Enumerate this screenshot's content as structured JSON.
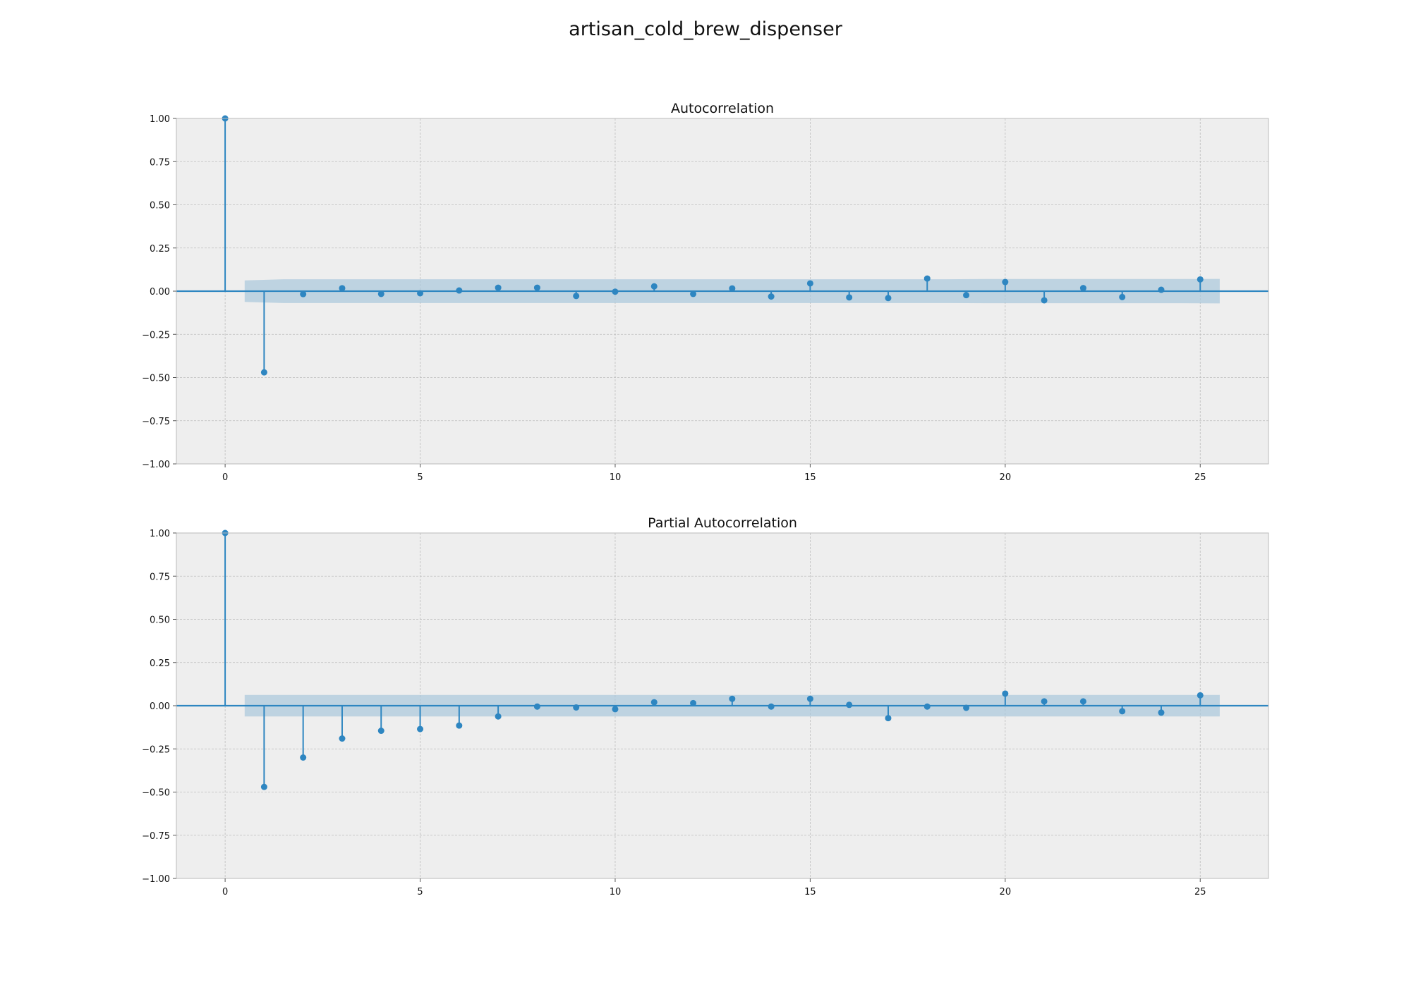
{
  "figure": {
    "suptitle": "artisan_cold_brew_dispenser"
  },
  "colors": {
    "stem": "#2E86C1",
    "marker": "#2E86C1",
    "band": "#A9C8DC",
    "axes_bg": "#EEEEEE",
    "grid": "#BDBDBD"
  },
  "chart_data": [
    {
      "type": "stem",
      "title": "Autocorrelation",
      "xlabel": "",
      "ylabel": "",
      "xlim": [
        -1.25,
        26.75
      ],
      "ylim": [
        -1.0,
        1.0
      ],
      "xticks": [
        "0",
        "5",
        "10",
        "15",
        "20",
        "25"
      ],
      "yticks": [
        "1.00",
        "0.75",
        "0.50",
        "0.25",
        "0.00",
        "−0.25",
        "−0.50",
        "−0.75",
        "−1.00"
      ],
      "grid": true,
      "lags": [
        0,
        1,
        2,
        3,
        4,
        5,
        6,
        7,
        8,
        9,
        10,
        11,
        12,
        13,
        14,
        15,
        16,
        17,
        18,
        19,
        20,
        21,
        22,
        23,
        24,
        25
      ],
      "values": [
        1.0,
        -0.47,
        -0.017,
        0.017,
        -0.016,
        -0.012,
        0.004,
        0.02,
        0.02,
        -0.028,
        -0.003,
        0.028,
        -0.016,
        0.016,
        -0.031,
        0.045,
        -0.036,
        -0.04,
        0.073,
        -0.023,
        0.053,
        -0.053,
        0.018,
        -0.034,
        0.008,
        0.068
      ],
      "conf_band": {
        "lags": [
          0.5,
          1.5,
          2.5,
          3.5,
          4.5,
          5.5,
          6.5,
          7.5,
          8.5,
          9.5,
          10.5,
          11.5,
          12.5,
          13.5,
          14.5,
          15.5,
          16.5,
          17.5,
          18.5,
          19.5,
          20.5,
          21.5,
          22.5,
          23.5,
          24.5,
          25.5
        ],
        "upper": [
          0.062,
          0.069,
          0.069,
          0.069,
          0.069,
          0.069,
          0.069,
          0.069,
          0.069,
          0.069,
          0.069,
          0.069,
          0.069,
          0.069,
          0.069,
          0.069,
          0.069,
          0.069,
          0.069,
          0.07,
          0.07,
          0.07,
          0.07,
          0.07,
          0.07,
          0.071
        ]
      }
    },
    {
      "type": "stem",
      "title": "Partial Autocorrelation",
      "xlabel": "",
      "ylabel": "",
      "xlim": [
        -1.25,
        26.75
      ],
      "ylim": [
        -1.0,
        1.0
      ],
      "xticks": [
        "0",
        "5",
        "10",
        "15",
        "20",
        "25"
      ],
      "yticks": [
        "1.00",
        "0.75",
        "0.50",
        "0.25",
        "0.00",
        "−0.25",
        "−0.50",
        "−0.75",
        "−1.00"
      ],
      "grid": true,
      "lags": [
        0,
        1,
        2,
        3,
        4,
        5,
        6,
        7,
        8,
        9,
        10,
        11,
        12,
        13,
        14,
        15,
        16,
        17,
        18,
        19,
        20,
        21,
        22,
        23,
        24,
        25
      ],
      "values": [
        1.0,
        -0.47,
        -0.3,
        -0.19,
        -0.145,
        -0.135,
        -0.115,
        -0.062,
        -0.005,
        -0.01,
        -0.02,
        0.02,
        0.015,
        0.04,
        -0.005,
        0.04,
        0.005,
        -0.072,
        -0.005,
        -0.012,
        0.07,
        0.025,
        0.025,
        -0.032,
        -0.04,
        0.06
      ],
      "conf_band": {
        "lags": [
          0.5,
          25.5
        ],
        "upper": [
          0.062,
          0.062
        ]
      }
    }
  ]
}
